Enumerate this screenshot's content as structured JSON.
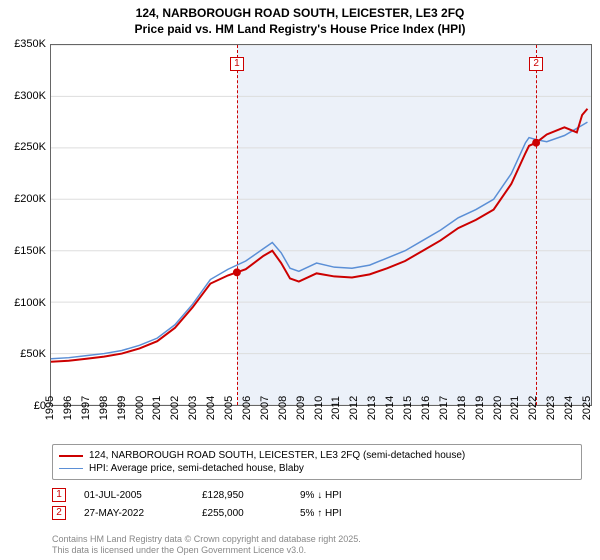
{
  "title_line1": "124, NARBOROUGH ROAD SOUTH, LEICESTER, LE3 2FQ",
  "title_line2": "Price paid vs. HM Land Registry's House Price Index (HPI)",
  "chart": {
    "type": "line",
    "background_color": "#ffffff",
    "border_color": "#666666",
    "shade_color": "rgba(180,200,230,0.25)",
    "marker_border_color": "#cc0000",
    "x": {
      "min": 1995,
      "max": 2025.5,
      "ticks": [
        1995,
        1996,
        1997,
        1998,
        1999,
        2000,
        2001,
        2002,
        2003,
        2004,
        2005,
        2006,
        2007,
        2008,
        2009,
        2010,
        2011,
        2012,
        2013,
        2014,
        2015,
        2016,
        2017,
        2018,
        2019,
        2020,
        2021,
        2022,
        2023,
        2024,
        2025
      ],
      "tick_fontsize": 11
    },
    "y": {
      "min": 0,
      "max": 350000,
      "ticks": [
        0,
        50000,
        100000,
        150000,
        200000,
        250000,
        300000,
        350000
      ],
      "tick_labels": [
        "£0",
        "£50K",
        "£100K",
        "£150K",
        "£200K",
        "£250K",
        "£300K",
        "£350K"
      ],
      "tick_fontsize": 11
    },
    "series": [
      {
        "id": "price_paid",
        "label": "124, NARBOROUGH ROAD SOUTH, LEICESTER, LE3 2FQ (semi-detached house)",
        "color": "#cc0000",
        "line_width": 2,
        "data": [
          [
            1995,
            42000
          ],
          [
            1996,
            43000
          ],
          [
            1997,
            45000
          ],
          [
            1998,
            47000
          ],
          [
            1999,
            50000
          ],
          [
            2000,
            55000
          ],
          [
            2001,
            62000
          ],
          [
            2002,
            75000
          ],
          [
            2003,
            95000
          ],
          [
            2004,
            118000
          ],
          [
            2005,
            126000
          ],
          [
            2005.5,
            128950
          ],
          [
            2006,
            132000
          ],
          [
            2007,
            145000
          ],
          [
            2007.5,
            150000
          ],
          [
            2008,
            138000
          ],
          [
            2008.5,
            123000
          ],
          [
            2009,
            120000
          ],
          [
            2010,
            128000
          ],
          [
            2011,
            125000
          ],
          [
            2012,
            124000
          ],
          [
            2013,
            127000
          ],
          [
            2014,
            133000
          ],
          [
            2015,
            140000
          ],
          [
            2016,
            150000
          ],
          [
            2017,
            160000
          ],
          [
            2018,
            172000
          ],
          [
            2019,
            180000
          ],
          [
            2020,
            190000
          ],
          [
            2021,
            215000
          ],
          [
            2021.8,
            245000
          ],
          [
            2022,
            252000
          ],
          [
            2022.4,
            255000
          ],
          [
            2023,
            263000
          ],
          [
            2024,
            270000
          ],
          [
            2024.7,
            265000
          ],
          [
            2025,
            282000
          ],
          [
            2025.3,
            288000
          ]
        ]
      },
      {
        "id": "hpi",
        "label": "HPI: Average price, semi-detached house, Blaby",
        "color": "#5b8fd6",
        "line_width": 1.5,
        "data": [
          [
            1995,
            45000
          ],
          [
            1996,
            46000
          ],
          [
            1997,
            48000
          ],
          [
            1998,
            50000
          ],
          [
            1999,
            53000
          ],
          [
            2000,
            58000
          ],
          [
            2001,
            65000
          ],
          [
            2002,
            78000
          ],
          [
            2003,
            98000
          ],
          [
            2004,
            122000
          ],
          [
            2005,
            132000
          ],
          [
            2006,
            140000
          ],
          [
            2007,
            152000
          ],
          [
            2007.5,
            158000
          ],
          [
            2008,
            148000
          ],
          [
            2008.5,
            133000
          ],
          [
            2009,
            130000
          ],
          [
            2010,
            138000
          ],
          [
            2011,
            134000
          ],
          [
            2012,
            133000
          ],
          [
            2013,
            136000
          ],
          [
            2014,
            143000
          ],
          [
            2015,
            150000
          ],
          [
            2016,
            160000
          ],
          [
            2017,
            170000
          ],
          [
            2018,
            182000
          ],
          [
            2019,
            190000
          ],
          [
            2020,
            200000
          ],
          [
            2021,
            225000
          ],
          [
            2021.8,
            255000
          ],
          [
            2022,
            260000
          ],
          [
            2022.4,
            258000
          ],
          [
            2023,
            256000
          ],
          [
            2024,
            262000
          ],
          [
            2025,
            272000
          ],
          [
            2025.3,
            275000
          ]
        ]
      }
    ],
    "shade_start_year": 2005.5,
    "markers": [
      {
        "n": "1",
        "year": 2005.5,
        "price_y": 128950
      },
      {
        "n": "2",
        "year": 2022.4,
        "price_y": 255000
      }
    ],
    "marker_dot_color": "#cc0000",
    "marker_dot_radius": 4
  },
  "legend": {
    "items": [
      {
        "color": "#cc0000",
        "width": 2,
        "label": "124, NARBOROUGH ROAD SOUTH, LEICESTER, LE3 2FQ (semi-detached house)"
      },
      {
        "color": "#5b8fd6",
        "width": 1.5,
        "label": "HPI: Average price, semi-detached house, Blaby"
      }
    ]
  },
  "transactions": [
    {
      "n": "1",
      "date": "01-JUL-2005",
      "price": "£128,950",
      "pct": "9% ↓ HPI"
    },
    {
      "n": "2",
      "date": "27-MAY-2022",
      "price": "£255,000",
      "pct": "5% ↑ HPI"
    }
  ],
  "footer_line1": "Contains HM Land Registry data © Crown copyright and database right 2025.",
  "footer_line2": "This data is licensed under the Open Government Licence v3.0."
}
